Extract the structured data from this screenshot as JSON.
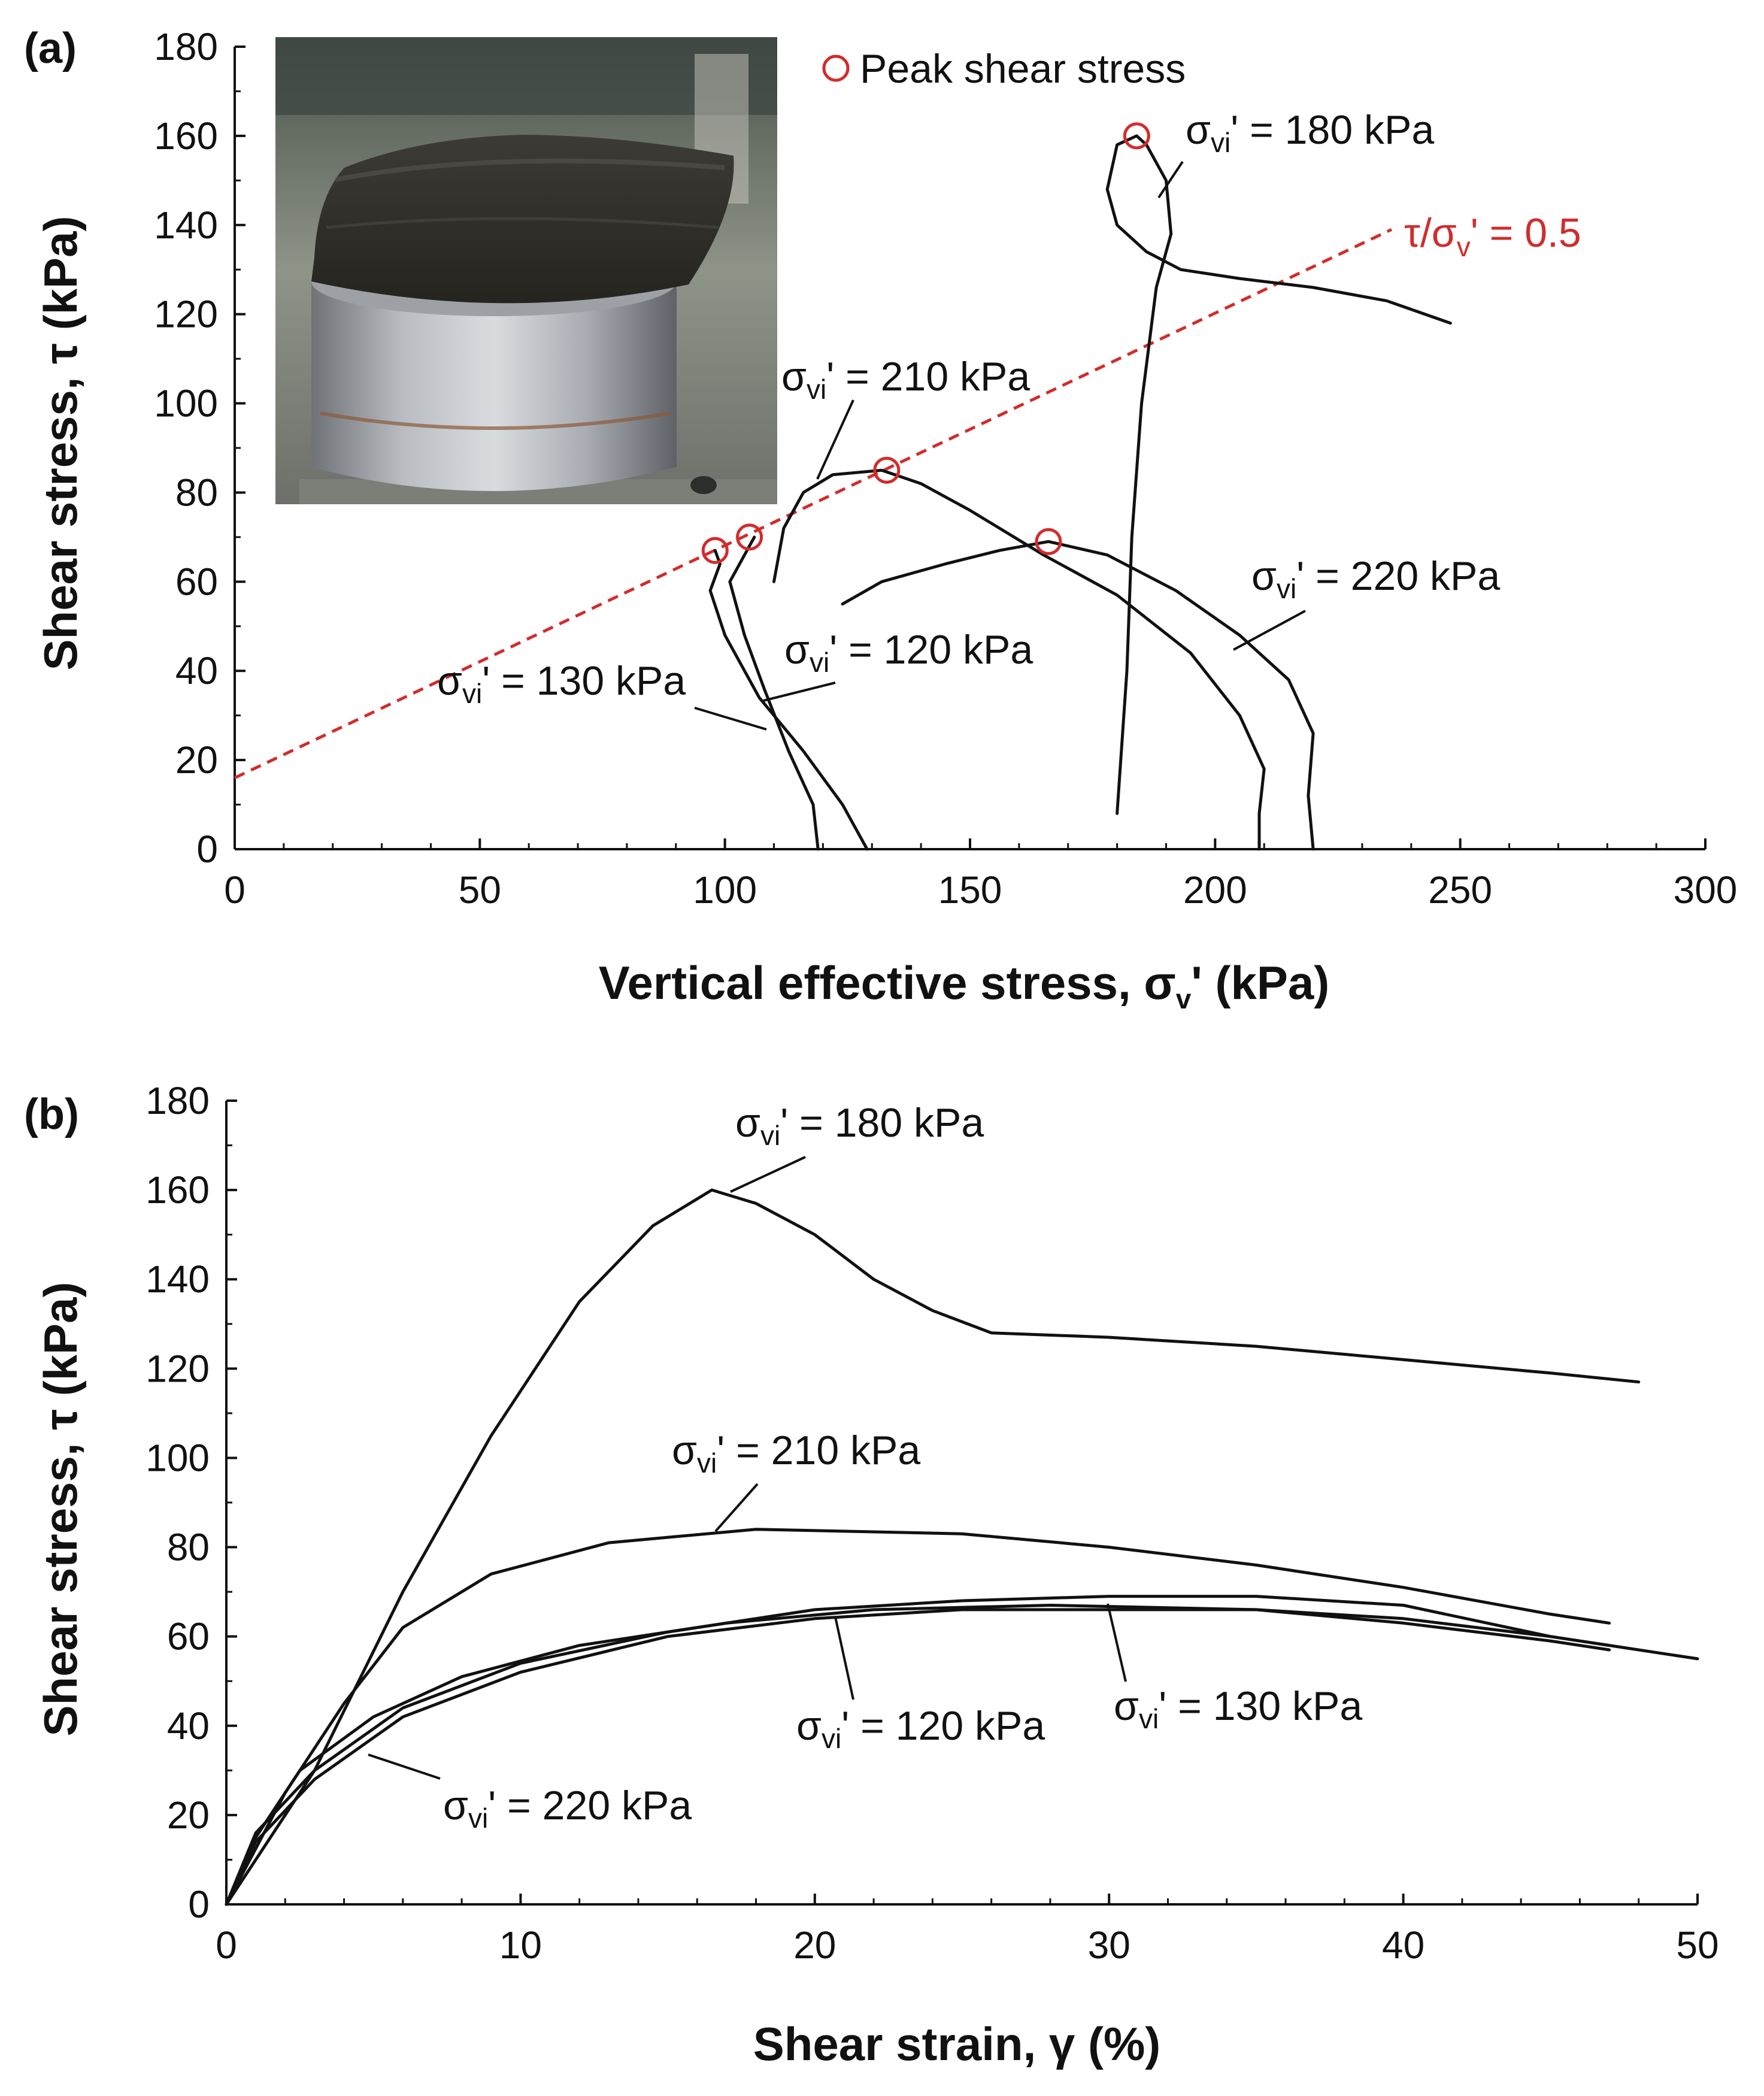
{
  "chart_data": [
    {
      "panel": "(a)",
      "type": "line",
      "xlabel": "Vertical effective stress, σv' (kPa)",
      "xlabel_main": "Vertical effective stress, σ",
      "xlabel_sub": "v",
      "xlabel_tail": "' (kPa)",
      "ylabel": "Shear stress, τ (kPa)",
      "xlim": [
        0,
        300
      ],
      "ylim": [
        0,
        180
      ],
      "xticks": [
        0,
        50,
        100,
        150,
        200,
        250,
        300
      ],
      "yticks": [
        0,
        20,
        40,
        60,
        80,
        100,
        120,
        140,
        160,
        180
      ],
      "grid": false,
      "legend": {
        "position": "top-right",
        "entries": [
          "Peak shear stress"
        ]
      },
      "inset_photo": true,
      "reference_line": {
        "label_main": "τ/σ",
        "label_sub": "v",
        "label_tail": "' = 0.5",
        "points": [
          [
            0,
            16
          ],
          [
            236,
            139
          ]
        ],
        "color": "#d12c2c"
      },
      "series": [
        {
          "name": "σvi' = 180 kPa",
          "label_main": "σ",
          "label_sub": "vi",
          "label_tail": "' = 180 kPa",
          "points": [
            [
              180,
              8
            ],
            [
              182,
              40
            ],
            [
              183,
              70
            ],
            [
              185,
              100
            ],
            [
              188,
              126
            ],
            [
              191,
              138
            ],
            [
              190,
              150
            ],
            [
              186,
              158
            ],
            [
              184,
              160
            ],
            [
              180,
              158
            ],
            [
              178,
              148
            ],
            [
              180,
              140
            ],
            [
              186,
              134
            ],
            [
              193,
              130
            ],
            [
              205,
              128
            ],
            [
              220,
              126
            ],
            [
              235,
              123
            ],
            [
              248,
              118
            ]
          ]
        },
        {
          "name": "σvi' = 210 kPa",
          "label_main": "σ",
          "label_sub": "vi",
          "label_tail": "' = 210 kPa",
          "points": [
            [
              110,
              60
            ],
            [
              112,
              72
            ],
            [
              116,
              80
            ],
            [
              122,
              84
            ],
            [
              132,
              85
            ],
            [
              140,
              82
            ],
            [
              150,
              76
            ],
            [
              165,
              66
            ],
            [
              180,
              57
            ],
            [
              195,
              44
            ],
            [
              205,
              30
            ],
            [
              210,
              18
            ],
            [
              209,
              8
            ],
            [
              209,
              0
            ]
          ]
        },
        {
          "name": "σvi' = 220 kPa",
          "label_main": "σ",
          "label_sub": "vi",
          "label_tail": "' = 220 kPa",
          "points": [
            [
              124,
              55
            ],
            [
              132,
              60
            ],
            [
              145,
              64
            ],
            [
              156,
              67
            ],
            [
              166,
              69
            ],
            [
              178,
              66
            ],
            [
              192,
              58
            ],
            [
              205,
              48
            ],
            [
              215,
              38
            ],
            [
              220,
              26
            ],
            [
              219,
              12
            ],
            [
              220,
              0
            ]
          ]
        },
        {
          "name": "σvi' = 120 kPa",
          "label_main": "σ",
          "label_sub": "vi",
          "label_tail": "' = 120 kPa",
          "points": [
            [
              106,
              70
            ],
            [
              104,
              66
            ],
            [
              101,
              60
            ],
            [
              104,
              48
            ],
            [
              108,
              36
            ],
            [
              113,
              22
            ],
            [
              118,
              10
            ],
            [
              119,
              0
            ]
          ]
        },
        {
          "name": "σvi' = 130 kPa",
          "label_main": "σ",
          "label_sub": "vi",
          "label_tail": "' = 130 kPa",
          "points": [
            [
              98,
              67
            ],
            [
              99,
              64
            ],
            [
              97,
              58
            ],
            [
              100,
              48
            ],
            [
              107,
              34
            ],
            [
              116,
              22
            ],
            [
              124,
              10
            ],
            [
              129,
              0
            ]
          ]
        }
      ],
      "peaks": [
        [
          98,
          67
        ],
        [
          105,
          70
        ],
        [
          133,
          85
        ],
        [
          166,
          69
        ],
        [
          184,
          160
        ]
      ],
      "annotations": [
        {
          "series": "σvi' = 180 kPa"
        },
        {
          "series": "σvi' = 210 kPa"
        },
        {
          "series": "σvi' = 220 kPa"
        },
        {
          "series": "σvi' = 120 kPa"
        },
        {
          "series": "σvi' = 130 kPa"
        }
      ]
    },
    {
      "panel": "(b)",
      "type": "line",
      "xlabel": "Shear strain, γ (%)",
      "ylabel": "Shear stress, τ (kPa)",
      "xlim": [
        0,
        50
      ],
      "ylim": [
        0,
        180
      ],
      "xticks": [
        0,
        10,
        20,
        30,
        40,
        50
      ],
      "yticks": [
        0,
        20,
        40,
        60,
        80,
        100,
        120,
        140,
        160,
        180
      ],
      "grid": false,
      "series": [
        {
          "name": "σvi' = 180 kPa",
          "label_main": "σ",
          "label_sub": "vi",
          "label_tail": "' = 180 kPa",
          "points": [
            [
              0,
              0
            ],
            [
              3,
              30
            ],
            [
              6,
              70
            ],
            [
              9,
              105
            ],
            [
              12,
              135
            ],
            [
              14.5,
              152
            ],
            [
              16.5,
              160
            ],
            [
              18,
              157
            ],
            [
              20,
              150
            ],
            [
              22,
              140
            ],
            [
              24,
              133
            ],
            [
              26,
              128
            ],
            [
              30,
              127
            ],
            [
              35,
              125
            ],
            [
              40,
              122
            ],
            [
              45,
              119
            ],
            [
              48,
              117
            ]
          ]
        },
        {
          "name": "σvi' = 210 kPa",
          "label_main": "σ",
          "label_sub": "vi",
          "label_tail": "' = 210 kPa",
          "points": [
            [
              0,
              0
            ],
            [
              2,
              25
            ],
            [
              4,
              45
            ],
            [
              6,
              62
            ],
            [
              9,
              74
            ],
            [
              13,
              81
            ],
            [
              18,
              84
            ],
            [
              25,
              83
            ],
            [
              30,
              80
            ],
            [
              35,
              76
            ],
            [
              40,
              71
            ],
            [
              45,
              65
            ],
            [
              47,
              63
            ]
          ]
        },
        {
          "name": "σvi' = 220 kPa",
          "label_main": "σ",
          "label_sub": "vi",
          "label_tail": "' = 220 kPa",
          "points": [
            [
              0,
              0
            ],
            [
              1,
              15
            ],
            [
              2.5,
              30
            ],
            [
              5,
              42
            ],
            [
              8,
              51
            ],
            [
              12,
              58
            ],
            [
              17,
              63
            ],
            [
              22,
              66
            ],
            [
              28,
              67
            ],
            [
              35,
              66
            ],
            [
              40,
              64
            ],
            [
              45,
              60
            ],
            [
              47,
              58
            ]
          ]
        },
        {
          "name": "σvi' = 120 kPa",
          "label_main": "σ",
          "label_sub": "vi",
          "label_tail": "' = 120 kPa",
          "points": [
            [
              0,
              0
            ],
            [
              1,
              14
            ],
            [
              3,
              28
            ],
            [
              6,
              42
            ],
            [
              10,
              52
            ],
            [
              15,
              60
            ],
            [
              20,
              64
            ],
            [
              25,
              66
            ],
            [
              30,
              66
            ],
            [
              35,
              66
            ],
            [
              40,
              63
            ],
            [
              45,
              59
            ],
            [
              47,
              57
            ]
          ]
        },
        {
          "name": "σvi' = 130 kPa",
          "label_main": "σ",
          "label_sub": "vi",
          "label_tail": "' = 130 kPa",
          "points": [
            [
              0,
              0
            ],
            [
              1,
              16
            ],
            [
              3,
              30
            ],
            [
              6,
              44
            ],
            [
              10,
              54
            ],
            [
              15,
              61
            ],
            [
              20,
              66
            ],
            [
              25,
              68
            ],
            [
              30,
              69
            ],
            [
              35,
              69
            ],
            [
              40,
              67
            ],
            [
              45,
              60
            ],
            [
              50,
              55
            ]
          ]
        }
      ]
    }
  ]
}
